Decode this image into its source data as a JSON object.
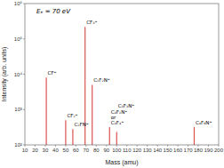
{
  "chart_data": {
    "type": "stem",
    "title": "Eₑ = 70 eV",
    "xlabel": "Mass (amu)",
    "ylabel": "Intensity (arb. units)",
    "x": [
      31,
      50,
      57,
      69,
      76,
      93,
      100,
      176
    ],
    "values": [
      8000,
      500,
      280,
      220000,
      5000,
      320,
      230,
      320
    ],
    "annotations": [
      "CF⁺",
      "CF₂⁺",
      "C₂FN⁺",
      "CF₃⁺",
      "C₂F₂N⁺",
      "C₄F₂N⁺\nor\nC₃F₄⁺",
      "C₃F₃N⁺",
      "C₄F₆N⁺"
    ],
    "color": "#d9534f",
    "log": "y",
    "xlim": [
      10,
      200
    ],
    "xticks": [
      10,
      20,
      30,
      40,
      50,
      60,
      70,
      80,
      90,
      100,
      110,
      120,
      130,
      140,
      150,
      160,
      170,
      180,
      190,
      200
    ],
    "ylim": [
      100,
      1000000
    ],
    "yticks": [
      {
        "value": 100,
        "label": "10²"
      },
      {
        "value": 1000,
        "label": "10³"
      },
      {
        "value": 10000,
        "label": "10⁴"
      },
      {
        "value": 100000,
        "label": "10⁵"
      },
      {
        "value": 1000000,
        "label": "10⁶"
      }
    ],
    "grid": false
  }
}
